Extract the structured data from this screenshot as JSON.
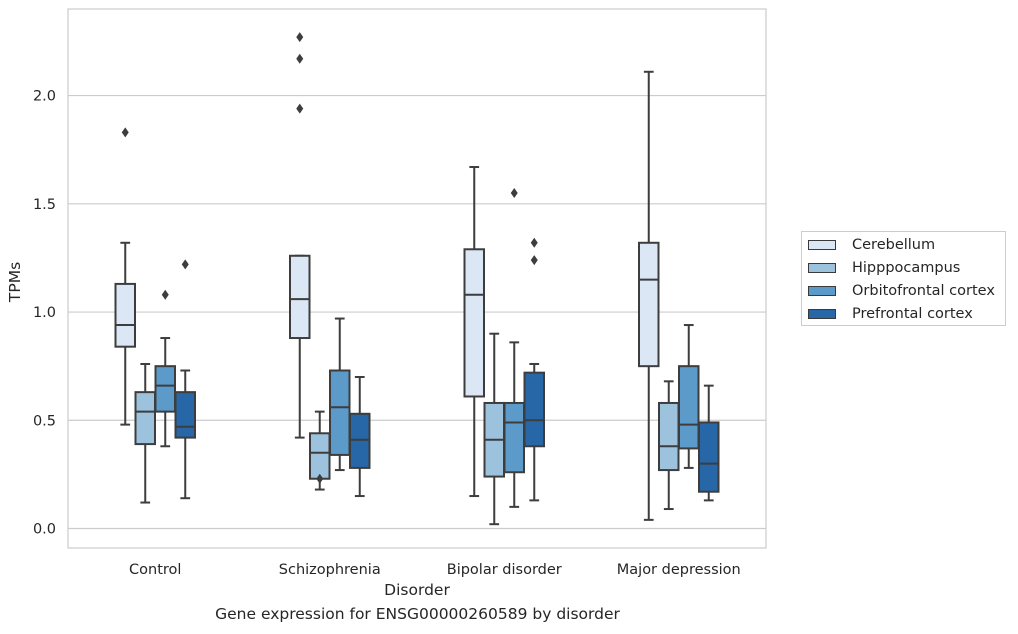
{
  "caption": "Gene expression for ENSG00000260589 by disorder",
  "chart_data": {
    "type": "box",
    "xlabel": "Disorder",
    "ylabel": "TPMs",
    "ylim": [
      -0.09,
      2.4
    ],
    "yticks": [
      "0.0",
      "0.5",
      "1.0",
      "1.5",
      "2.0"
    ],
    "grid": "horizontal",
    "legend_position": "right",
    "categories": [
      "Control",
      "Schizophrenia",
      "Bipolar disorder",
      "Major depression"
    ],
    "series": [
      {
        "name": "Cerebellum",
        "color": "#dce7f5",
        "boxes": [
          {
            "whisker_low": 0.48,
            "q1": 0.84,
            "median": 0.94,
            "q3": 1.13,
            "whisker_high": 1.32,
            "outliers": [
              1.83
            ]
          },
          {
            "whisker_low": 0.42,
            "q1": 0.88,
            "median": 1.06,
            "q3": 1.26,
            "whisker_high": 1.26,
            "outliers": [
              2.27,
              2.17,
              1.94
            ]
          },
          {
            "whisker_low": 0.15,
            "q1": 0.61,
            "median": 1.08,
            "q3": 1.29,
            "whisker_high": 1.67,
            "outliers": []
          },
          {
            "whisker_low": 0.04,
            "q1": 0.75,
            "median": 1.15,
            "q3": 1.32,
            "whisker_high": 2.11,
            "outliers": []
          }
        ]
      },
      {
        "name": "Hipppocampus",
        "color": "#9cc2dd",
        "boxes": [
          {
            "whisker_low": 0.12,
            "q1": 0.39,
            "median": 0.54,
            "q3": 0.63,
            "whisker_high": 0.76,
            "outliers": []
          },
          {
            "whisker_low": 0.18,
            "q1": 0.23,
            "median": 0.35,
            "q3": 0.44,
            "whisker_high": 0.54,
            "outliers": [
              0.23
            ]
          },
          {
            "whisker_low": 0.02,
            "q1": 0.24,
            "median": 0.41,
            "q3": 0.58,
            "whisker_high": 0.9,
            "outliers": []
          },
          {
            "whisker_low": 0.09,
            "q1": 0.27,
            "median": 0.38,
            "q3": 0.58,
            "whisker_high": 0.68,
            "outliers": []
          }
        ]
      },
      {
        "name": "Orbitofrontal cortex",
        "color": "#5b9ac9",
        "boxes": [
          {
            "whisker_low": 0.38,
            "q1": 0.54,
            "median": 0.66,
            "q3": 0.75,
            "whisker_high": 0.88,
            "outliers": [
              1.08
            ]
          },
          {
            "whisker_low": 0.27,
            "q1": 0.34,
            "median": 0.56,
            "q3": 0.73,
            "whisker_high": 0.97,
            "outliers": []
          },
          {
            "whisker_low": 0.1,
            "q1": 0.26,
            "median": 0.49,
            "q3": 0.58,
            "whisker_high": 0.86,
            "outliers": [
              1.55
            ]
          },
          {
            "whisker_low": 0.28,
            "q1": 0.37,
            "median": 0.48,
            "q3": 0.75,
            "whisker_high": 0.94,
            "outliers": []
          }
        ]
      },
      {
        "name": "Prefrontal cortex",
        "color": "#2767a8",
        "boxes": [
          {
            "whisker_low": 0.14,
            "q1": 0.42,
            "median": 0.47,
            "q3": 0.63,
            "whisker_high": 0.73,
            "outliers": [
              1.22
            ]
          },
          {
            "whisker_low": 0.15,
            "q1": 0.28,
            "median": 0.41,
            "q3": 0.53,
            "whisker_high": 0.7,
            "outliers": []
          },
          {
            "whisker_low": 0.13,
            "q1": 0.38,
            "median": 0.5,
            "q3": 0.72,
            "whisker_high": 0.76,
            "outliers": [
              1.32,
              1.24
            ]
          },
          {
            "whisker_low": 0.13,
            "q1": 0.17,
            "median": 0.3,
            "q3": 0.49,
            "whisker_high": 0.66,
            "outliers": []
          }
        ]
      }
    ]
  }
}
